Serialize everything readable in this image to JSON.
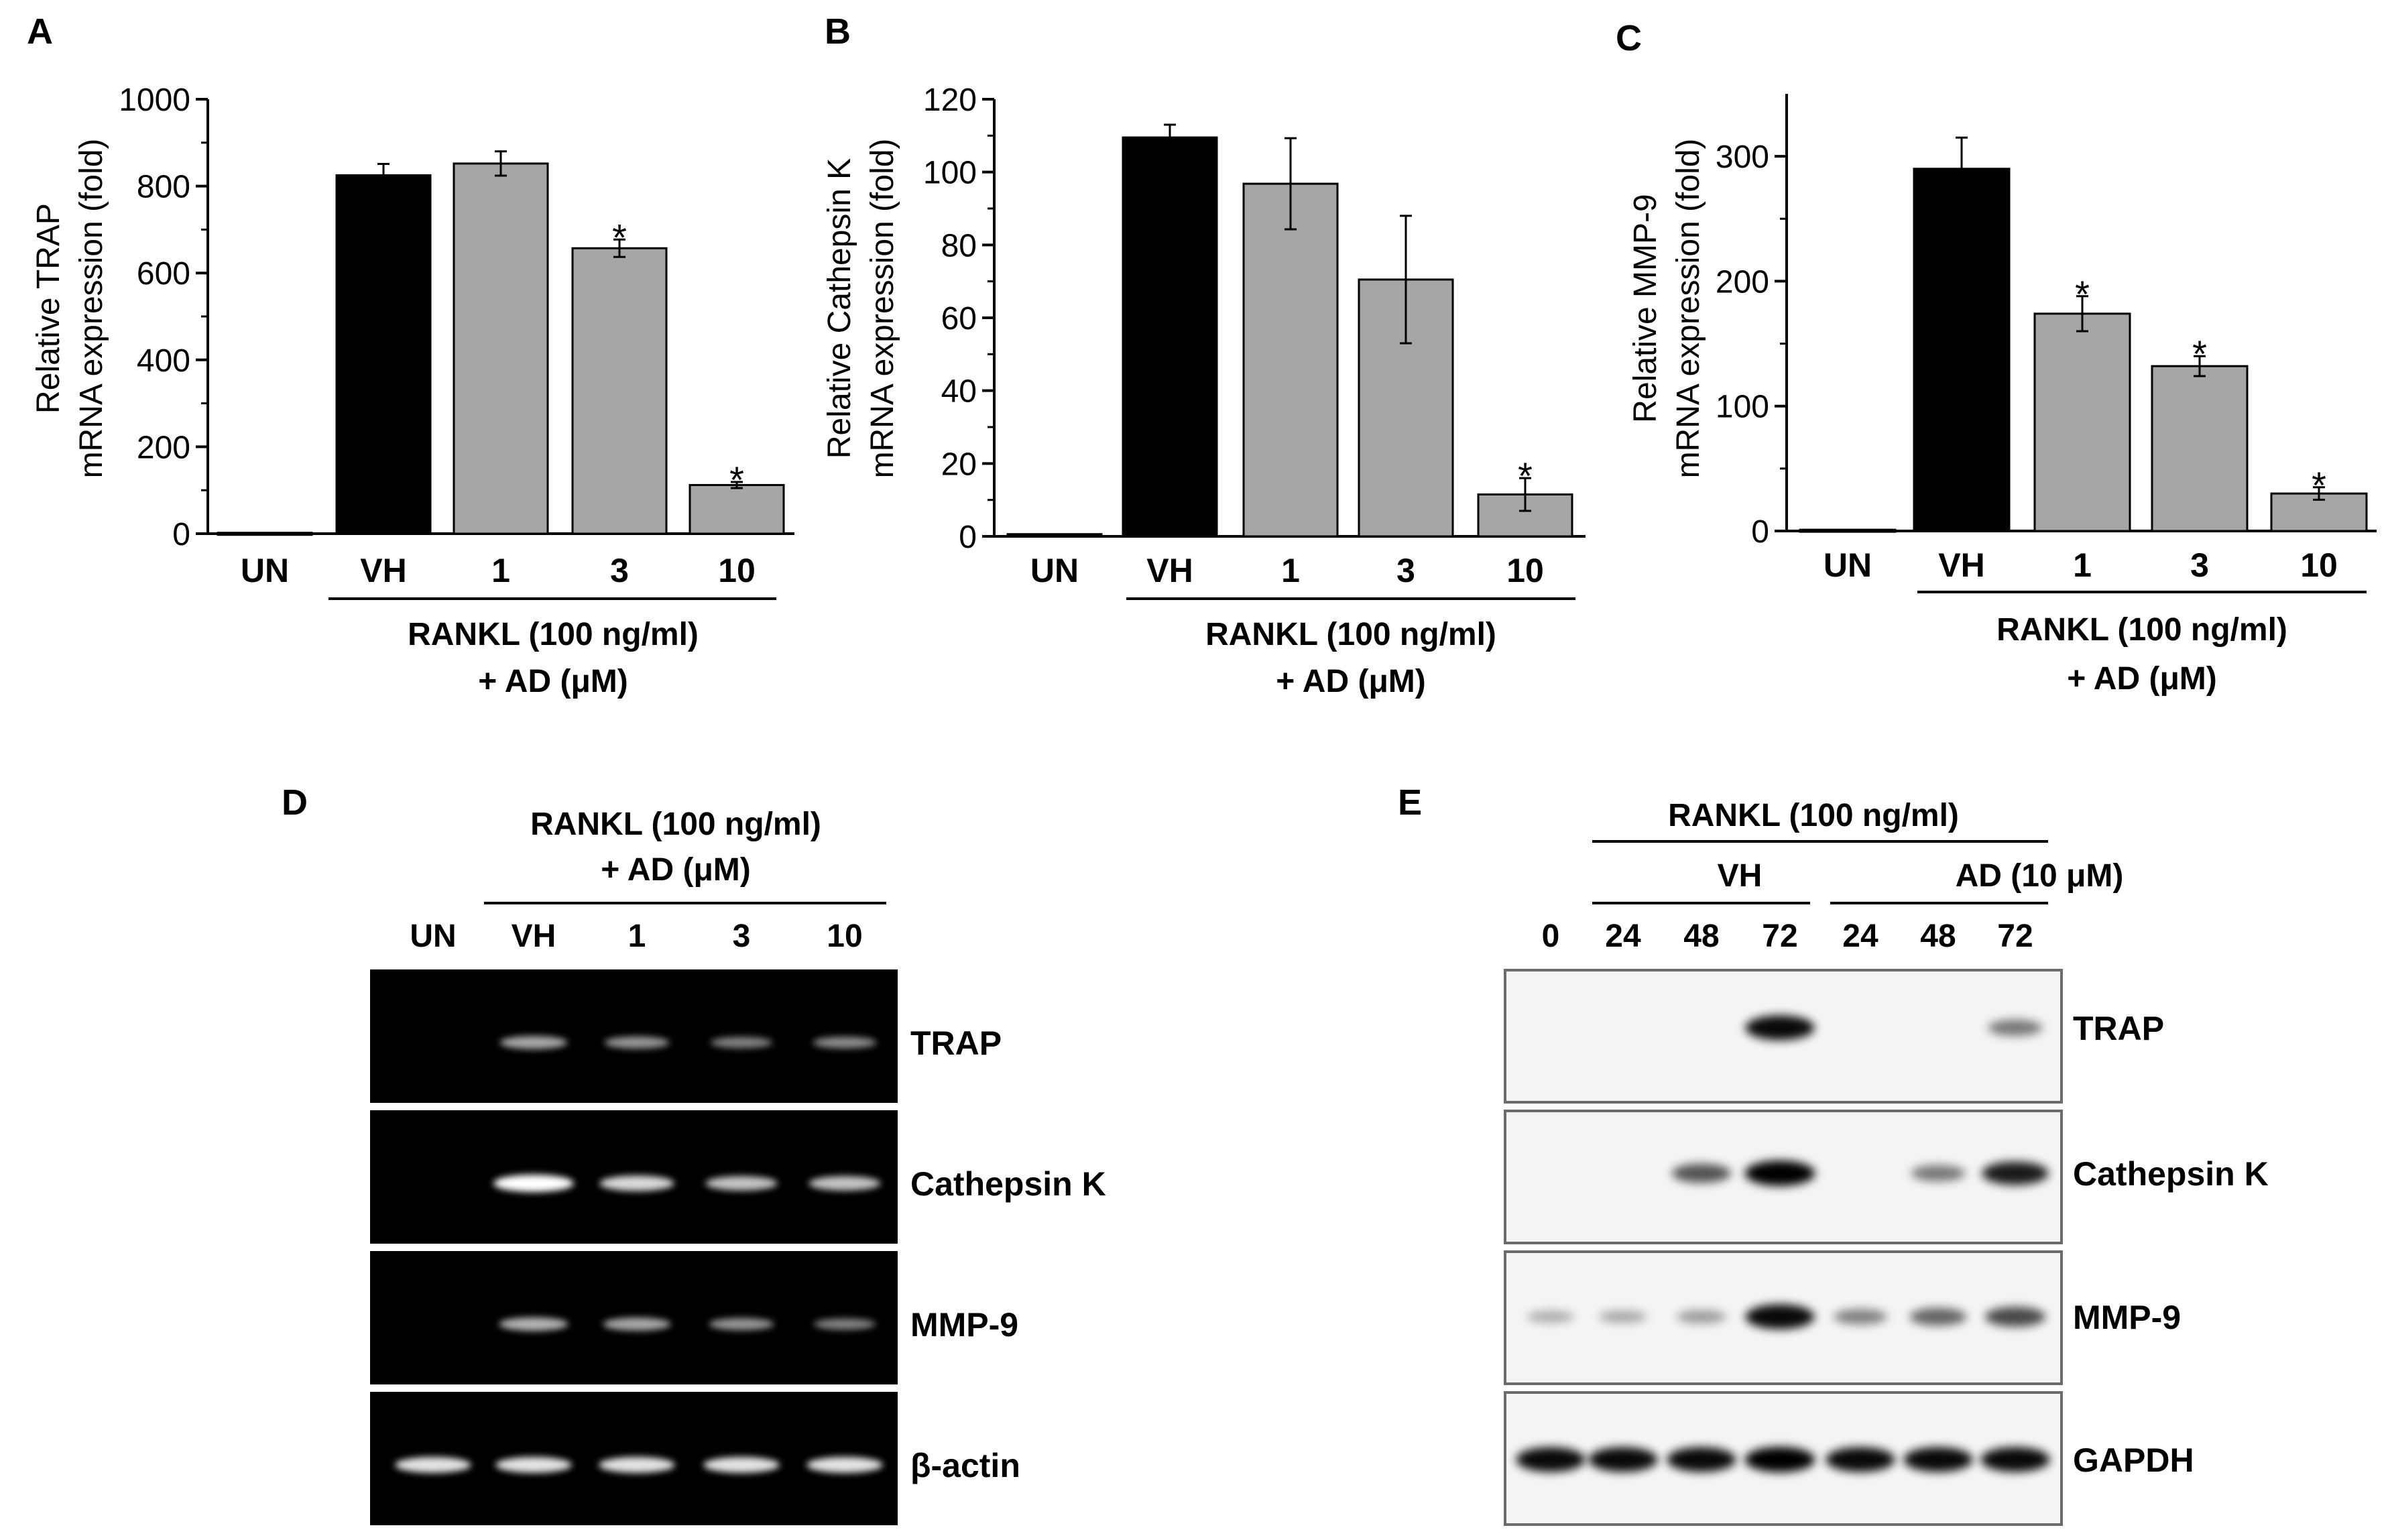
{
  "colors": {
    "vehicle_bar": "#000000",
    "treated_bar": "#a6a6a6",
    "untreated_bar": "#000000",
    "gel_background": "#000000",
    "blot_background": "#f4f4f4"
  },
  "chart_data": [
    {
      "panel_letter": "A",
      "type": "bar",
      "ylabel_line1": "Relative TRAP",
      "ylabel_line2": "mRNA expression (fold)",
      "categories": [
        "UN",
        "VH",
        "1",
        "3",
        "10"
      ],
      "values": [
        2,
        825,
        852,
        657,
        112
      ],
      "errors": [
        0,
        26,
        28,
        20,
        7
      ],
      "significant": [
        false,
        false,
        false,
        true,
        true
      ],
      "significance_mark": "*",
      "ylim": [
        0,
        1000
      ],
      "yticks": [
        "0",
        "200",
        "400",
        "600",
        "800",
        "1000"
      ],
      "ytick_values": [
        0,
        200,
        400,
        600,
        800,
        1000
      ],
      "group_label_line1": "RANKL (100 ng/ml)",
      "group_label_line2": "+ AD (μM)"
    },
    {
      "panel_letter": "B",
      "type": "bar",
      "ylabel_line1": "Relative Cathepsin K",
      "ylabel_line2": "mRNA expression (fold)",
      "categories": [
        "UN",
        "VH",
        "1",
        "3",
        "10"
      ],
      "values": [
        0.6,
        109.5,
        96.8,
        70.5,
        11.5
      ],
      "errors": [
        0,
        3.5,
        12.5,
        17.5,
        4.5
      ],
      "significant": [
        false,
        false,
        false,
        false,
        true
      ],
      "significance_mark": "*",
      "ylim": [
        0,
        120
      ],
      "yticks": [
        "0",
        "20",
        "40",
        "60",
        "80",
        "100",
        "120"
      ],
      "ytick_values": [
        0,
        20,
        40,
        60,
        80,
        100,
        120
      ],
      "group_label_line1": "RANKL (100 ng/ml)",
      "group_label_line2": "+ AD (μM)"
    },
    {
      "panel_letter": "C",
      "type": "bar",
      "ylabel_line1": "Relative MMP-9",
      "ylabel_line2": "mRNA expression (fold)",
      "categories": [
        "UN",
        "VH",
        "1",
        "3",
        "10"
      ],
      "values": [
        1,
        290,
        174,
        132,
        30
      ],
      "errors": [
        0,
        25,
        14,
        8,
        5
      ],
      "significant": [
        false,
        false,
        true,
        true,
        true
      ],
      "significance_mark": "*",
      "ylim": [
        0,
        350
      ],
      "yticks": [
        "0",
        "100",
        "200",
        "300"
      ],
      "ytick_values": [
        0,
        100,
        200,
        300
      ],
      "group_label_line1": "RANKL (100 ng/ml)",
      "group_label_line2": "+ AD (μM)"
    }
  ],
  "panel_d": {
    "panel_letter": "D",
    "header_line1": "RANKL (100 ng/ml)",
    "header_line2": "+ AD (μM)",
    "lanes": [
      "UN",
      "VH",
      "1",
      "3",
      "10"
    ],
    "rows": [
      {
        "label": "TRAP",
        "intensity": [
          0,
          0.55,
          0.45,
          0.35,
          0.4
        ]
      },
      {
        "label": "Cathepsin K",
        "intensity": [
          0,
          1.0,
          0.8,
          0.7,
          0.7
        ]
      },
      {
        "label": "MMP-9",
        "intensity": [
          0,
          0.6,
          0.55,
          0.45,
          0.35
        ]
      },
      {
        "label": "β-actin",
        "intensity": [
          0.85,
          0.85,
          0.85,
          0.85,
          0.85
        ]
      }
    ]
  },
  "panel_e": {
    "panel_letter": "E",
    "header_top": "RANKL (100 ng/ml)",
    "group_vh": "VH",
    "group_ad": "AD (10 μM)",
    "lanes": [
      "0",
      "24",
      "48",
      "72",
      "24",
      "48",
      "72"
    ],
    "rows": [
      {
        "label": "TRAP",
        "intensity": [
          0,
          0,
          0,
          0.95,
          0,
          0,
          0.35
        ]
      },
      {
        "label": "Cathepsin K",
        "intensity": [
          0,
          0,
          0.55,
          1.0,
          0,
          0.35,
          0.85
        ]
      },
      {
        "label": "MMP-9",
        "intensity": [
          0.05,
          0.08,
          0.15,
          0.95,
          0.3,
          0.45,
          0.6
        ]
      },
      {
        "label": "GAPDH",
        "intensity": [
          0.95,
          0.95,
          0.95,
          1.0,
          0.95,
          0.95,
          0.95
        ]
      }
    ]
  }
}
